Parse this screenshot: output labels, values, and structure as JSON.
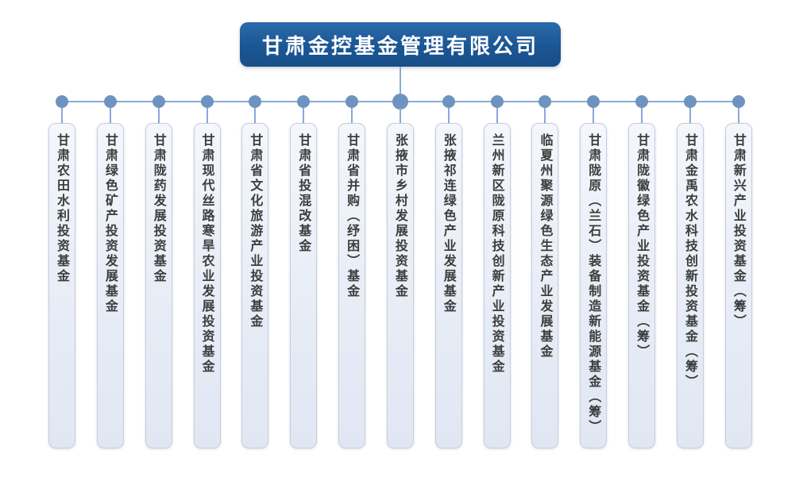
{
  "company": {
    "name": "甘肃金控基金管理有限公司"
  },
  "funds": [
    "甘肃农田水利投资基金",
    "甘肃绿色矿产投资发展基金",
    "甘肃陇药发展投资基金",
    "甘肃现代丝路寒旱农业发展投资基金",
    "甘肃省文化旅游产业投资基金",
    "甘肃省投混改基金",
    "甘肃省并购（纾困）基金",
    "张掖市乡村发展投资基金",
    "张掖祁连绿色产业发展基金",
    "兰州新区陇原科技创新产业投资基金",
    "临夏州聚源绿色生态产业发展基金",
    "甘肃陇原（兰石）装备制造新能源基金（筹）",
    "甘肃陇徽绿色产业投资基金（筹）",
    "甘肃金禹农水科技创新投资基金（筹）",
    "甘肃新兴产业投资基金（筹）"
  ],
  "colors": {
    "title_node": "#1b5694",
    "connector": "#86abd6",
    "dot": "#6e93c0",
    "box_background": "#e9eef7",
    "box_border": "#c9cedb",
    "box_text": "#3d3d3d"
  }
}
